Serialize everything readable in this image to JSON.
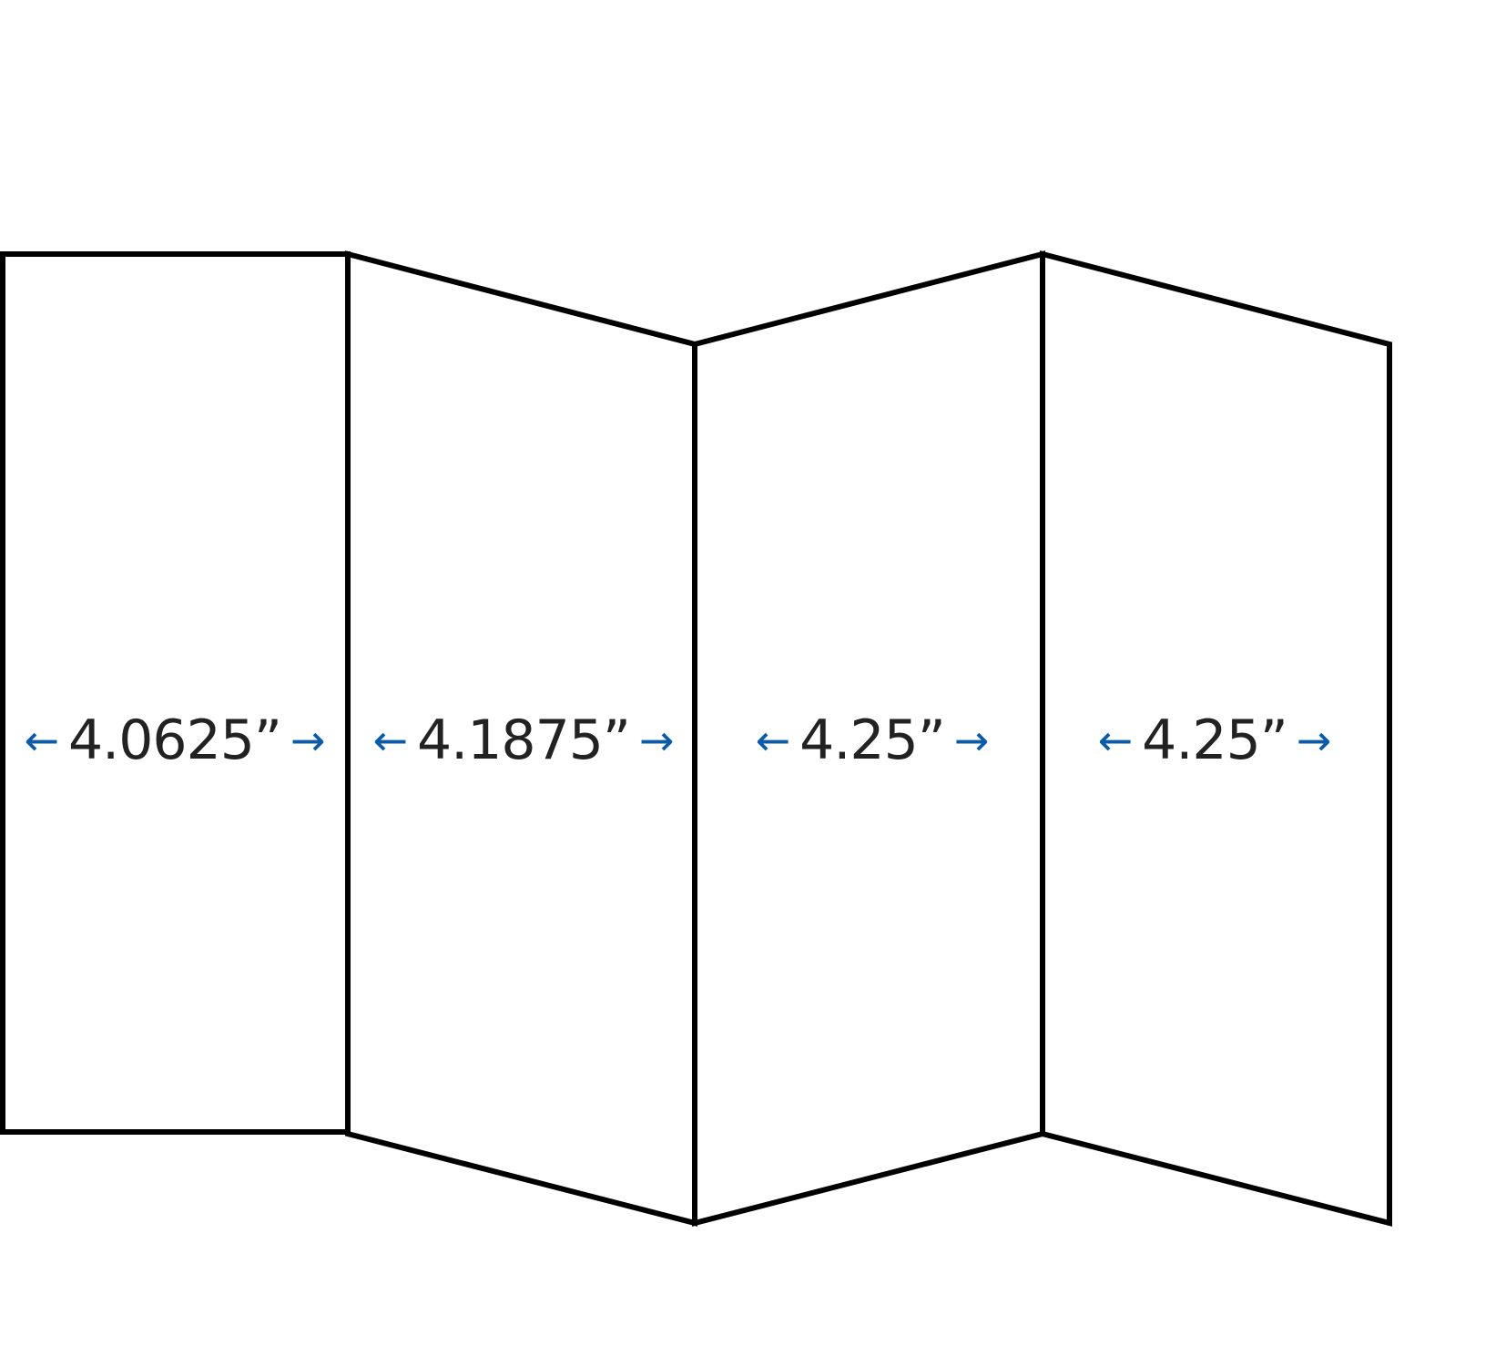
{
  "colors": {
    "stroke": "#000000",
    "arrow": "#0a5bab",
    "text": "#222222"
  },
  "panels": [
    {
      "width_label": "4.0625”"
    },
    {
      "width_label": "4.1875”"
    },
    {
      "width_label": "4.25”"
    },
    {
      "width_label": "4.25”"
    }
  ],
  "icons": {
    "left": "arrow-left-icon",
    "right": "arrow-right-icon"
  }
}
